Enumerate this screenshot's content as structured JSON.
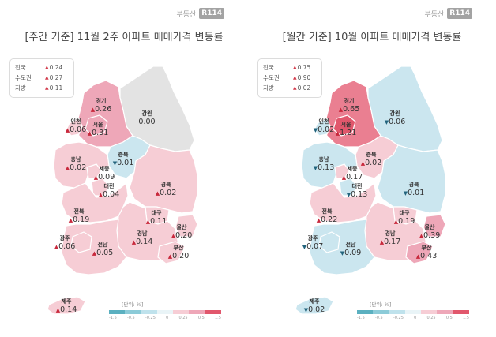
{
  "panels": [
    {
      "logo_text": "부동산",
      "logo_mark": "R114",
      "title": "[주간 기준] 11월 2주 아파트 매매가격 변동률",
      "summary": [
        {
          "label": "전국",
          "dir": "up",
          "value": "0.24"
        },
        {
          "label": "수도권",
          "dir": "up",
          "value": "0.27"
        },
        {
          "label": "지방",
          "dir": "up",
          "value": "0.11"
        }
      ],
      "regions": {
        "gyeonggi": {
          "name": "경기",
          "dir": "up",
          "value": "0.26",
          "color": "#eea7b8"
        },
        "gangwon": {
          "name": "강원",
          "dir": "none",
          "value": "0.00",
          "color": "#e3e3e3"
        },
        "incheon": {
          "name": "인천",
          "dir": "up",
          "value": "0.06",
          "color": "#f6cdd5"
        },
        "seoul": {
          "name": "서울",
          "dir": "up",
          "value": "0.31",
          "color": "#eea7b8"
        },
        "chungbuk": {
          "name": "충북",
          "dir": "down",
          "value": "0.01",
          "color": "#cbe6ef"
        },
        "chungnam": {
          "name": "충남",
          "dir": "up",
          "value": "0.02",
          "color": "#f6cdd5"
        },
        "sejong": {
          "name": "세종",
          "dir": "up",
          "value": "0.09",
          "color": "#f6cdd5"
        },
        "daejeon": {
          "name": "대전",
          "dir": "up",
          "value": "0.04",
          "color": "#f6cdd5"
        },
        "gyeongbuk": {
          "name": "경북",
          "dir": "up",
          "value": "0.02",
          "color": "#f6cdd5"
        },
        "jeonbuk": {
          "name": "전북",
          "dir": "up",
          "value": "0.19",
          "color": "#f6cdd5"
        },
        "daegu": {
          "name": "대구",
          "dir": "up",
          "value": "0.11",
          "color": "#f6cdd5"
        },
        "ulsan": {
          "name": "울산",
          "dir": "up",
          "value": "0.20",
          "color": "#f6cdd5"
        },
        "gyeongnam": {
          "name": "경남",
          "dir": "up",
          "value": "0.14",
          "color": "#f6cdd5"
        },
        "gwangju": {
          "name": "광주",
          "dir": "up",
          "value": "0.06",
          "color": "#f6cdd5"
        },
        "jeonnam": {
          "name": "전남",
          "dir": "up",
          "value": "0.05",
          "color": "#f6cdd5"
        },
        "busan": {
          "name": "부산",
          "dir": "up",
          "value": "0.20",
          "color": "#f6cdd5"
        },
        "jeju": {
          "name": "제주",
          "dir": "up",
          "value": "0.14",
          "color": "#f6cdd5"
        }
      },
      "legend_unit": "[단위: %]",
      "legend_ticks": [
        "-1.5",
        "-0.5",
        "-0.25",
        "0",
        "0.25",
        "0.5",
        "1.5"
      ]
    },
    {
      "logo_text": "부동산",
      "logo_mark": "R114",
      "title": "[월간 기준] 10월 아파트 매매가격 변동률",
      "summary": [
        {
          "label": "전국",
          "dir": "up",
          "value": "0.75"
        },
        {
          "label": "수도권",
          "dir": "up",
          "value": "0.90"
        },
        {
          "label": "지방",
          "dir": "up",
          "value": "0.02"
        }
      ],
      "regions": {
        "gyeonggi": {
          "name": "경기",
          "dir": "up",
          "value": "0.65",
          "color": "#ea7f91"
        },
        "gangwon": {
          "name": "강원",
          "dir": "down",
          "value": "0.06",
          "color": "#cbe6ef"
        },
        "incheon": {
          "name": "인천",
          "dir": "down",
          "value": "0.02",
          "color": "#cbe6ef"
        },
        "seoul": {
          "name": "서울",
          "dir": "up",
          "value": "1.21",
          "color": "#e1576c"
        },
        "chungbuk": {
          "name": "충북",
          "dir": "up",
          "value": "0.02",
          "color": "#f6cdd5"
        },
        "chungnam": {
          "name": "충남",
          "dir": "down",
          "value": "0.13",
          "color": "#cbe6ef"
        },
        "sejong": {
          "name": "세종",
          "dir": "up",
          "value": "0.17",
          "color": "#f6cdd5"
        },
        "daejeon": {
          "name": "대전",
          "dir": "down",
          "value": "0.13",
          "color": "#cbe6ef"
        },
        "gyeongbuk": {
          "name": "경북",
          "dir": "down",
          "value": "0.01",
          "color": "#cbe6ef"
        },
        "jeonbuk": {
          "name": "전북",
          "dir": "up",
          "value": "0.22",
          "color": "#f6cdd5"
        },
        "daegu": {
          "name": "대구",
          "dir": "up",
          "value": "0.19",
          "color": "#f6cdd5"
        },
        "ulsan": {
          "name": "울산",
          "dir": "up",
          "value": "0.39",
          "color": "#eea7b8"
        },
        "gyeongnam": {
          "name": "경남",
          "dir": "up",
          "value": "0.17",
          "color": "#f6cdd5"
        },
        "gwangju": {
          "name": "광주",
          "dir": "down",
          "value": "0.07",
          "color": "#cbe6ef"
        },
        "jeonnam": {
          "name": "전남",
          "dir": "down",
          "value": "0.09",
          "color": "#cbe6ef"
        },
        "busan": {
          "name": "부산",
          "dir": "up",
          "value": "0.43",
          "color": "#eea7b8"
        },
        "jeju": {
          "name": "제주",
          "dir": "down",
          "value": "0.02",
          "color": "#cbe6ef"
        }
      },
      "legend_unit": "[단위: %]",
      "legend_ticks": [
        "-1.5",
        "-0.5",
        "-0.25",
        "0",
        "0.25",
        "0.5",
        "1.5"
      ]
    }
  ],
  "legend_colors": [
    "#5bb0c0",
    "#8ccbd8",
    "#bfe2ec",
    "#e9f4f7",
    "#f6cdd5",
    "#eea7b8",
    "#e1576c"
  ]
}
